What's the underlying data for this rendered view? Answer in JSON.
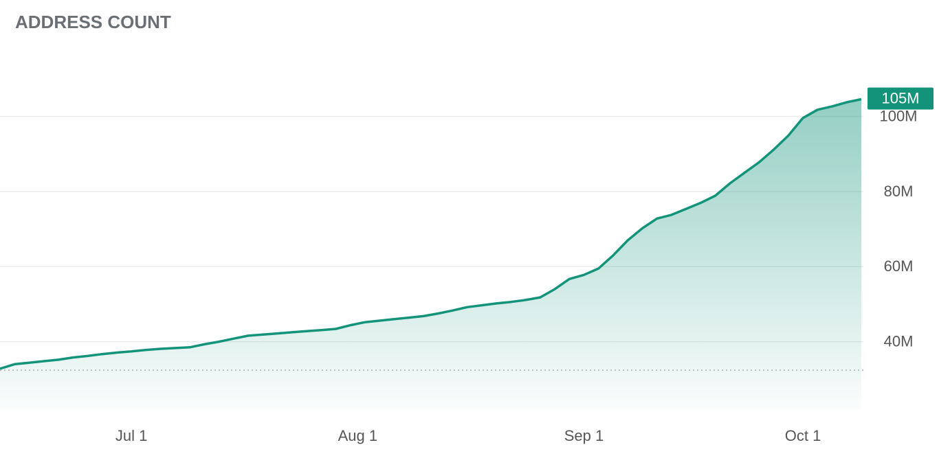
{
  "chart_data": {
    "type": "area",
    "title": "ADDRESS COUNT",
    "color": "#12937a",
    "grid": true,
    "x": [
      164,
      166,
      168,
      170,
      172,
      174,
      176,
      178,
      180,
      182,
      184,
      186,
      188,
      190,
      192,
      194,
      196,
      198,
      200,
      202,
      204,
      206,
      208,
      210,
      212,
      214,
      216,
      218,
      220,
      222,
      224,
      226,
      228,
      230,
      232,
      234,
      236,
      238,
      240,
      242,
      244,
      246,
      248,
      250,
      252,
      254,
      256,
      258,
      260,
      262,
      264,
      266,
      268,
      270,
      272,
      274,
      276,
      278,
      280,
      282
    ],
    "values": [
      32.8,
      34.0,
      34.4,
      34.8,
      35.2,
      35.8,
      36.2,
      36.7,
      37.1,
      37.4,
      37.8,
      38.1,
      38.3,
      38.5,
      39.3,
      40.0,
      40.8,
      41.6,
      41.9,
      42.2,
      42.5,
      42.8,
      43.1,
      43.4,
      44.4,
      45.2,
      45.6,
      46.0,
      46.4,
      46.8,
      47.5,
      48.3,
      49.2,
      49.7,
      50.2,
      50.6,
      51.1,
      51.8,
      54.0,
      56.7,
      57.8,
      59.5,
      63.0,
      67.0,
      70.2,
      72.8,
      73.8,
      75.4,
      77.0,
      78.9,
      82.2,
      85.0,
      87.8,
      91.2,
      94.9,
      99.6,
      101.8,
      102.7,
      103.8,
      104.6
    ],
    "end_label": {
      "value": 104.6,
      "label": "105M"
    },
    "baseline": 32.4,
    "xlim": [
      164,
      282
    ],
    "xticks": [
      {
        "value": 182,
        "label": "Jul 1"
      },
      {
        "value": 213,
        "label": "Aug 1"
      },
      {
        "value": 244,
        "label": "Sep 1"
      },
      {
        "value": 274,
        "label": "Oct 1"
      }
    ],
    "ylim": [
      22,
      110
    ],
    "yticks": [
      {
        "value": 40,
        "label": "40M"
      },
      {
        "value": 60,
        "label": "60M"
      },
      {
        "value": 80,
        "label": "80M"
      },
      {
        "value": 100,
        "label": "100M"
      }
    ]
  }
}
